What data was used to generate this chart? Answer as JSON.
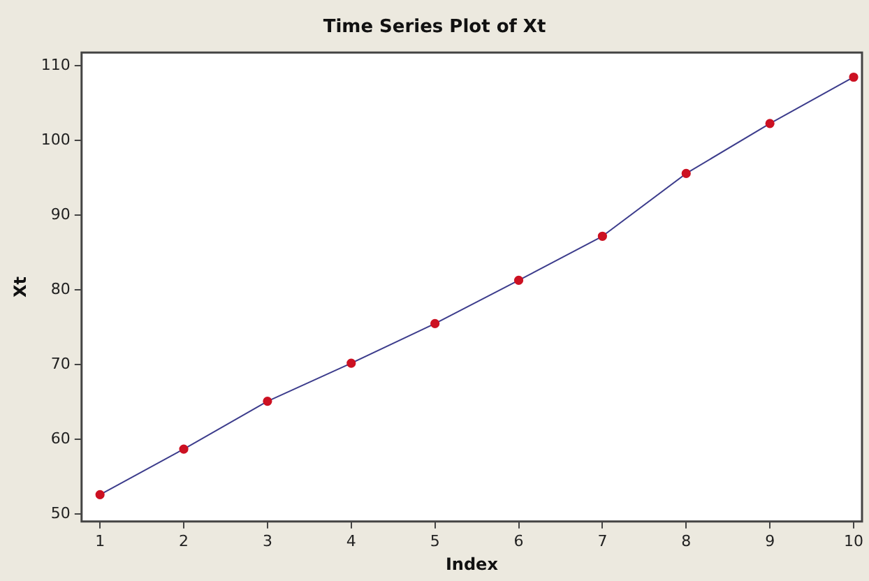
{
  "chart_data": {
    "type": "line",
    "title": "Time Series Plot of Xt",
    "xlabel": "Index",
    "ylabel": "Xt",
    "x": [
      1,
      2,
      3,
      4,
      5,
      6,
      7,
      8,
      9,
      10
    ],
    "series": [
      {
        "color": "#3c3c8c",
        "values": [
          52.6,
          58.7,
          65.1,
          70.2,
          75.5,
          81.3,
          87.2,
          95.6,
          102.3,
          108.5
        ]
      }
    ],
    "marker": "circle",
    "line_style": "solid",
    "grid": false,
    "legend": false,
    "xlim": [
      0.78,
      10.1
    ],
    "xticks": [
      1,
      2,
      3,
      4,
      5,
      6,
      7,
      8,
      9,
      10
    ],
    "ylim": [
      49,
      111.8
    ],
    "yticks": [
      50,
      60,
      70,
      80,
      90,
      100,
      110
    ]
  }
}
